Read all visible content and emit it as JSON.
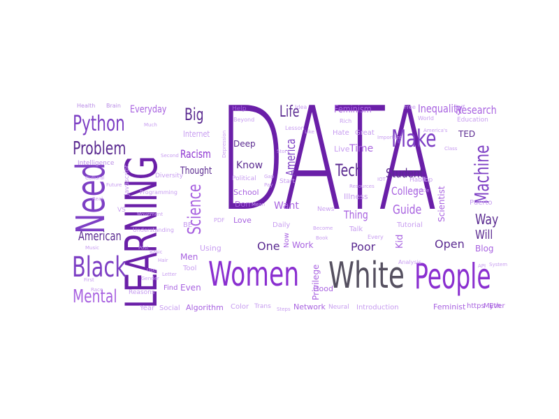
{
  "words": {
    "data": "DATA",
    "learning": "LEARNING",
    "women": "Women",
    "white": "White",
    "people": "People",
    "black": "Black",
    "need": "Need",
    "python": "Python",
    "problem": "Problem",
    "mental": "Mental",
    "american": "American",
    "big": "Big",
    "everyday": "Everyday",
    "internet": "Internet",
    "racism": "Racism",
    "thought": "Thought",
    "science": "Science",
    "life": "Life",
    "feminism": "Feminism",
    "inequality": "Inequality",
    "research": "Research",
    "make": "Make",
    "machine": "Machine",
    "tech": "Tech",
    "student": "Student",
    "college": "College",
    "guide": "Guide",
    "way": "Way",
    "will": "Will",
    "blog": "Blog",
    "thing": "Thing",
    "illness": "Illness",
    "america": "America",
    "know": "Know",
    "deep": "Deep",
    "want": "Want",
    "poor": "Poor",
    "work": "Work",
    "kid": "Kid",
    "open": "Open",
    "one": "One",
    "time": "Time",
    "great": "Great",
    "hate": "Hate",
    "help": "Help",
    "school": "School",
    "love": "Love",
    "daily": "Daily",
    "men": "Men",
    "algorithm": "Algorithm",
    "color": "Color",
    "trans": "Trans",
    "network": "Network",
    "neural": "Neural",
    "introduction": "Introduction",
    "feminist": "Feminist",
    "https": "https",
    "myth": "Myth",
    "ever": "Ever",
    "social": "Social",
    "year": "Year",
    "find": "Find",
    "even": "Even",
    "tool": "Tool",
    "using": "Using",
    "good": "Good",
    "privilege": "Privilege",
    "talk": "Talk",
    "tutorial": "Tutorial",
    "habit": "Habit",
    "top": "Top",
    "scientist": "Scientist",
    "puerto": "Puerto",
    "rich": "Rich",
    "live": "Live",
    "start": "Start",
    "political": "Political",
    "don": "Don",
    "health": "Health",
    "brain": "Brain",
    "world": "World",
    "education": "Education",
    "self": "Self",
    "news": "News",
    "now": "Now",
    "vs": "VS",
    "javascript": "Javascript",
    "intelligence": "Intelligence",
    "diversity": "Diversity",
    "lesson": "Lesson",
    "idea": "Idea",
    "free": "Free",
    "ted": "TED",
    "reasons": "Reasons",
    "every": "Every",
    "analysis": "Analysis",
    "steps": "Steps",
    "understanding": "Understanding",
    "programming": "Programming",
    "hair": "Hair",
    "basic": "Basic",
    "letter": "Letter",
    "race": "Race",
    "pdf": "PDF",
    "resources": "Resources",
    "article": "Article",
    "cultural": "Cultural",
    "much": "Much",
    "depression": "Depression",
    "america_s": "America's",
    "real": "Real",
    "system": "System",
    "future": "Future",
    "beyond": "Beyond",
    "gap": "Gap",
    "pay": "Pay",
    "become": "Become",
    "second": "Second",
    "music": "Music",
    "iot": "IOT",
    "api": "API",
    "gender": "Gender",
    "post": "Post",
    "book": "Book",
    "first": "First",
    "story": "Story",
    "use": "Use",
    "mean": "Mean",
    "important": "Important",
    "movement": "Movement",
    "be": "BE",
    "need2": "Need",
    "like": "Like",
    "class": "Class"
  }
}
